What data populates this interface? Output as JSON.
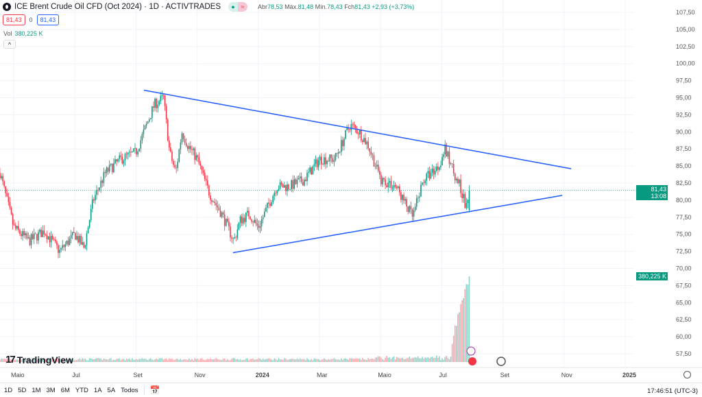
{
  "header": {
    "title": "ICE Brent Crude Oil CFD (Oct 2024) · 1D · ACTIVTRADES",
    "open_label": "Abr",
    "open": "78,53",
    "high_label": "Máx.",
    "high": "81,48",
    "low_label": "Mín.",
    "low": "78,43",
    "close_label": "Fch",
    "close": "81,43",
    "change": "+2,93 (+3,73%)",
    "sell": "81,43",
    "spread": "0",
    "buy": "81,43",
    "vol_label": "Vol",
    "vol": "380,225 K",
    "collapse": "^"
  },
  "price_axis": {
    "ticks": [
      "107,50",
      "105,00",
      "102,50",
      "100,00",
      "97,50",
      "95,00",
      "92,50",
      "90,00",
      "87,50",
      "85,00",
      "82,50",
      "80,00",
      "77,50",
      "75,00",
      "72,50",
      "70,00",
      "67,50",
      "65,00",
      "62,50",
      "60,00",
      "57,50"
    ],
    "last_price": "81,43",
    "countdown": "13:08",
    "last_volume": "380,225 K"
  },
  "time_axis": [
    {
      "label": "Maio",
      "m": 0
    },
    {
      "label": "Jul",
      "m": 2
    },
    {
      "label": "Set",
      "m": 4
    },
    {
      "label": "Nov",
      "m": 6
    },
    {
      "label": "2024",
      "m": 8,
      "bold": true
    },
    {
      "label": "Mar",
      "m": 10
    },
    {
      "label": "Maio",
      "m": 12
    },
    {
      "label": "Jul",
      "m": 14
    },
    {
      "label": "Set",
      "m": 16
    },
    {
      "label": "Nov",
      "m": 18
    },
    {
      "label": "2025",
      "m": 20,
      "bold": true
    }
  ],
  "branding": "TradingView",
  "ranges": [
    "1D",
    "5D",
    "1M",
    "3M",
    "6M",
    "YTD",
    "1A",
    "5A",
    "Todos"
  ],
  "clock": "17:46:51 (UTC-3)",
  "colors": {
    "up": "#089981",
    "down": "#f23645",
    "trend": "#2962ff"
  },
  "chart_data": {
    "type": "candlestick",
    "price_range": [
      57.5,
      107.5
    ],
    "close_waypoints": [
      [
        -0.45,
        84
      ],
      [
        0,
        76
      ],
      [
        0.5,
        74
      ],
      [
        1,
        75.5
      ],
      [
        1.5,
        72.5
      ],
      [
        2,
        75
      ],
      [
        2.3,
        73
      ],
      [
        2.6,
        80
      ],
      [
        3,
        84
      ],
      [
        3.5,
        86
      ],
      [
        4,
        87
      ],
      [
        4.6,
        94
      ],
      [
        4.9,
        95
      ],
      [
        5.1,
        87
      ],
      [
        5.3,
        84
      ],
      [
        5.5,
        90
      ],
      [
        5.7,
        88
      ],
      [
        6,
        86
      ],
      [
        6.4,
        81
      ],
      [
        6.8,
        78
      ],
      [
        7.2,
        74
      ],
      [
        7.4,
        77
      ],
      [
        7.7,
        78
      ],
      [
        8,
        76
      ],
      [
        8.3,
        79
      ],
      [
        8.6,
        82
      ],
      [
        9,
        82
      ],
      [
        9.5,
        83
      ],
      [
        10,
        86
      ],
      [
        10.5,
        86
      ],
      [
        11,
        91
      ],
      [
        11.3,
        90
      ],
      [
        11.6,
        88
      ],
      [
        12,
        83
      ],
      [
        12.5,
        82
      ],
      [
        13.05,
        77.5
      ],
      [
        13.4,
        83
      ],
      [
        13.9,
        85
      ],
      [
        14.1,
        87.5
      ],
      [
        14.4,
        84
      ],
      [
        14.6,
        82
      ],
      [
        14.8,
        78.8
      ],
      [
        14.88,
        81.43
      ]
    ],
    "trendlines": [
      {
        "name": "upper",
        "from": [
          4.26,
          96.1
        ],
        "to": [
          18.23,
          84.6
        ]
      },
      {
        "name": "lower",
        "from": [
          7.17,
          72.3
        ],
        "to": [
          17.94,
          80.7
        ]
      }
    ],
    "last_volume_k": 380.225
  }
}
